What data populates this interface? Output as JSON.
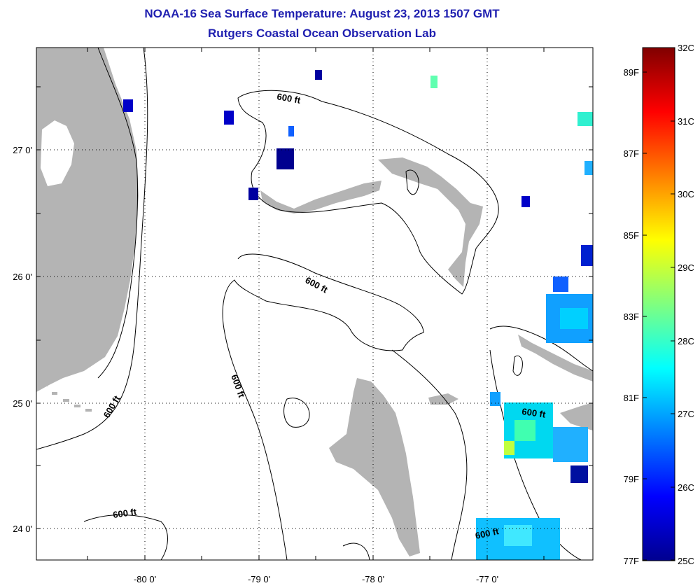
{
  "title_line1": "NOAA-16 Sea Surface Temperature:  August 23, 2013 1507 GMT",
  "title_line2": "Rutgers Coastal Ocean Observation Lab",
  "map": {
    "lon_labels": [
      "-80 0'",
      "-79 0'",
      "-78 0'",
      "-77 0'"
    ],
    "lat_labels": [
      "27 0'",
      "26 0'",
      "25 0'",
      "24 0'"
    ],
    "contour_label": "600 ft",
    "colors": {
      "land": "#b4b4b4",
      "ocean": "#ffffff",
      "grid": "#000000"
    }
  },
  "colorbar": {
    "celsius_labels": [
      "32C",
      "31C",
      "30C",
      "29C",
      "28C",
      "27C",
      "26C",
      "25C"
    ],
    "fahrenheit_labels": [
      "89F",
      "87F",
      "85F",
      "83F",
      "81F",
      "79F",
      "77F"
    ],
    "range_c": [
      25,
      32
    ],
    "colormap": "jet"
  }
}
